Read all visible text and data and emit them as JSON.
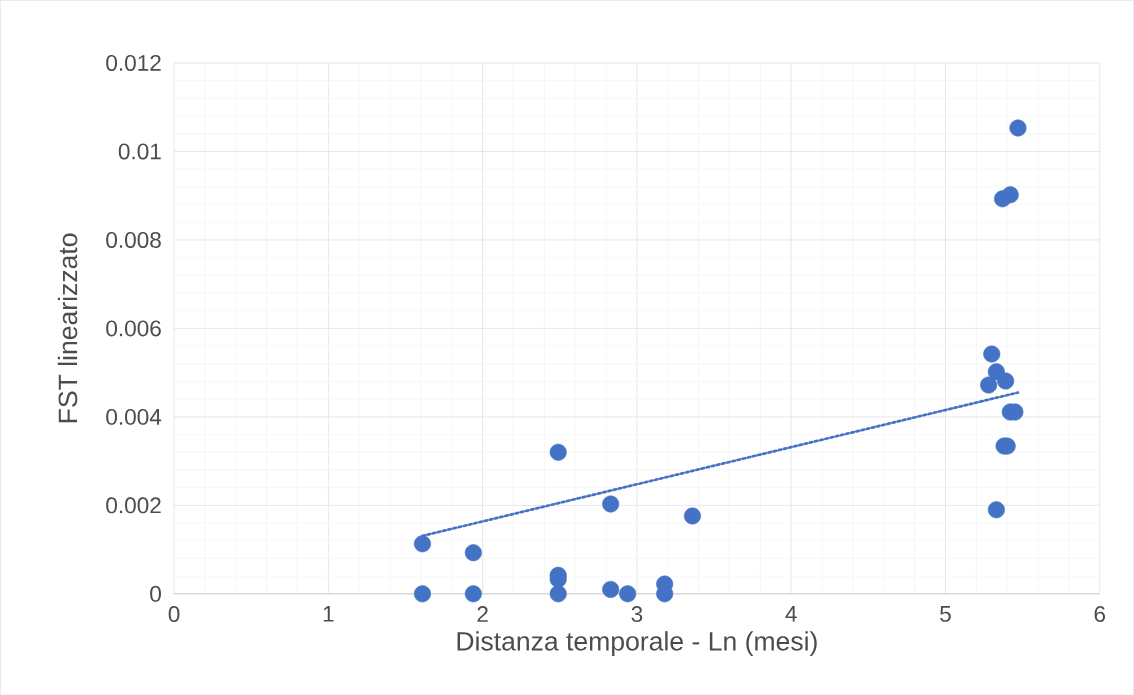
{
  "chart_data": {
    "type": "scatter",
    "xlabel": "Distanza temporale - Ln (mesi)",
    "ylabel": "FST linearizzato",
    "xlim": [
      0,
      6
    ],
    "xticks": [
      0,
      1,
      2,
      3,
      4,
      5,
      6
    ],
    "ylim": [
      0,
      0.012
    ],
    "yticks": [
      0,
      0.002,
      0.004,
      0.006,
      0.008,
      0.01,
      0.012
    ],
    "grid": true,
    "series": [
      {
        "marker": "circle",
        "color": "#4472c4",
        "x": [
          1.61,
          1.61,
          1.94,
          1.94,
          2.49,
          2.49,
          2.49,
          2.49,
          2.83,
          2.83,
          2.94,
          3.18,
          3.18,
          3.36,
          5.28,
          5.3,
          5.33,
          5.33,
          5.37,
          5.39,
          5.38,
          5.4,
          5.42,
          5.42,
          5.45,
          5.47
        ],
        "values": [
          0.00113,
          0,
          0.00093,
          0,
          0.0032,
          0.00042,
          0.00033,
          0,
          0.00203,
          0.0001,
          0,
          0.00022,
          0,
          0.00176,
          0.00472,
          0.00542,
          0.00502,
          0.0019,
          0.00893,
          0.00481,
          0.00334,
          0.00334,
          0.00902,
          0.00411,
          0.00411,
          0.01053
        ]
      },
      {
        "type": "line",
        "line_style": "dotted",
        "marker": "none",
        "color": "#4472c4",
        "x": [
          1.61,
          5.47
        ],
        "values": [
          0.00131,
          0.00455
        ]
      }
    ]
  }
}
